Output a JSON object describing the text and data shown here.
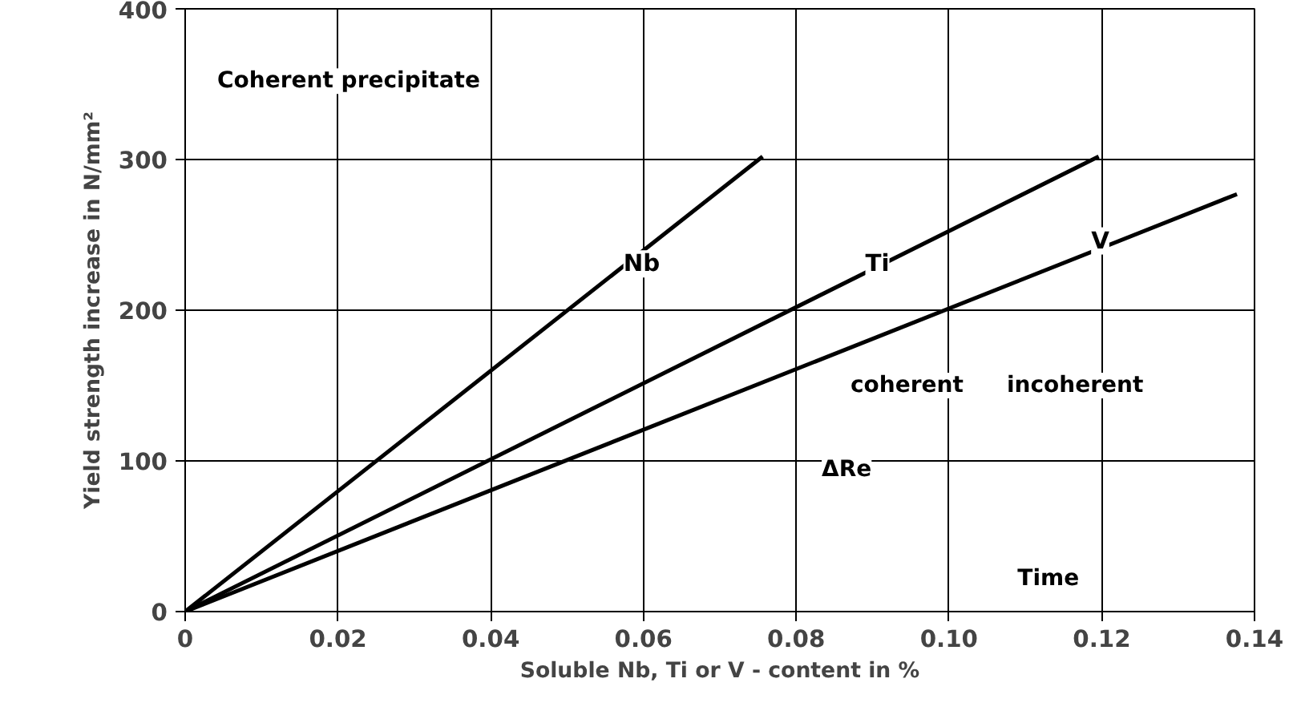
{
  "chart_data": {
    "type": "line",
    "xlabel": "Soluble Nb, Ti or V - content in %",
    "ylabel": "Yield strength increase in N/mm²",
    "xlim": [
      0,
      0.14
    ],
    "ylim": [
      0,
      400
    ],
    "xticks": [
      0,
      0.02,
      0.04,
      0.06,
      0.08,
      {
        "value": 0.1,
        "label": "0.10"
      },
      0.12,
      0.14
    ],
    "yticks": [
      0,
      100,
      200,
      300,
      400
    ],
    "grid": true,
    "series": [
      {
        "name": "Nb",
        "color": "#000000",
        "x": [
          0,
          0.0756
        ],
        "values": [
          0,
          302
        ]
      },
      {
        "name": "Ti",
        "color": "#000000",
        "x": [
          0,
          0.1196
        ],
        "values": [
          0,
          302
        ]
      },
      {
        "name": "V",
        "color": "#000000",
        "x": [
          0,
          0.1377
        ],
        "values": [
          0,
          277
        ]
      }
    ],
    "annotations": [
      "Coherent precipitate",
      "coherent",
      "incoherent",
      "ΔRe",
      "Time"
    ]
  }
}
